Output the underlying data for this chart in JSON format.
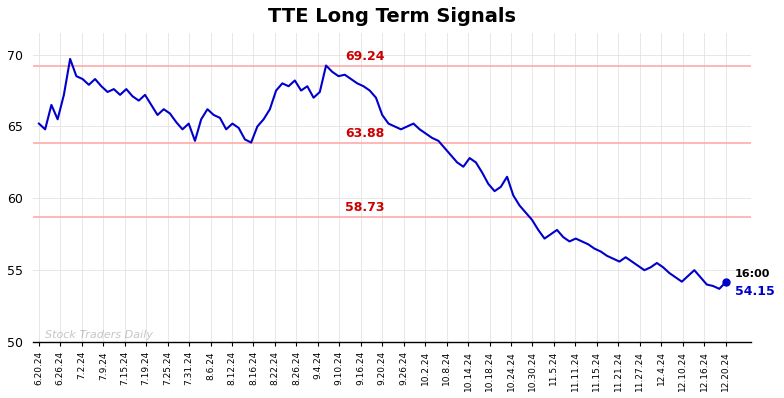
{
  "title": "TTE Long Term Signals",
  "title_fontsize": 14,
  "background_color": "#ffffff",
  "line_color": "#0000cc",
  "line_width": 1.5,
  "watermark": "Stock Traders Daily",
  "hlines": [
    69.24,
    63.88,
    58.73
  ],
  "hline_color": "#ffaaaa",
  "hline_label_color": "#cc0000",
  "hline_labels": [
    "69.24",
    "63.88",
    "58.73"
  ],
  "ylim": [
    50,
    71.5
  ],
  "yticks": [
    50,
    55,
    60,
    65,
    70
  ],
  "end_label_time": "16:00",
  "end_label_value": "54.15",
  "end_dot_color": "#0000cc",
  "x_labels": [
    "6.20.24",
    "6.26.24",
    "7.2.24",
    "7.9.24",
    "7.15.24",
    "7.19.24",
    "7.25.24",
    "7.31.24",
    "8.6.24",
    "8.12.24",
    "8.16.24",
    "8.22.24",
    "8.26.24",
    "9.4.24",
    "9.10.24",
    "9.16.24",
    "9.20.24",
    "9.26.24",
    "10.2.24",
    "10.8.24",
    "10.14.24",
    "10.18.24",
    "10.24.24",
    "10.30.24",
    "11.5.24",
    "11.11.24",
    "11.15.24",
    "11.21.24",
    "11.27.24",
    "12.4.24",
    "12.10.24",
    "12.16.24",
    "12.20.24"
  ],
  "prices": [
    65.2,
    64.8,
    66.5,
    65.5,
    67.2,
    69.7,
    68.5,
    68.3,
    67.9,
    68.3,
    67.8,
    67.4,
    67.6,
    67.2,
    67.6,
    67.1,
    66.8,
    67.2,
    66.5,
    65.8,
    66.2,
    65.9,
    65.3,
    64.8,
    65.2,
    64.0,
    65.5,
    66.2,
    65.8,
    65.6,
    64.8,
    65.2,
    64.9,
    64.1,
    63.88,
    65.0,
    65.5,
    66.2,
    67.5,
    68.0,
    67.8,
    68.2,
    67.5,
    67.8,
    67.0,
    67.4,
    69.24,
    68.8,
    68.5,
    68.6,
    68.3,
    68.0,
    67.8,
    67.5,
    67.0,
    65.8,
    65.2,
    65.0,
    64.8,
    65.0,
    65.2,
    64.8,
    64.5,
    64.2,
    64.0,
    63.5,
    63.0,
    62.5,
    62.2,
    62.8,
    62.5,
    61.8,
    61.0,
    60.5,
    60.8,
    61.5,
    60.2,
    59.5,
    59.0,
    58.5,
    57.8,
    57.2,
    57.5,
    57.8,
    57.3,
    57.0,
    57.2,
    57.0,
    56.8,
    56.5,
    56.3,
    56.0,
    55.8,
    55.6,
    55.9,
    55.6,
    55.3,
    55.0,
    55.2,
    55.5,
    55.2,
    54.8,
    54.5,
    54.2,
    54.6,
    55.0,
    54.5,
    54.0,
    53.9,
    53.7,
    54.15
  ]
}
